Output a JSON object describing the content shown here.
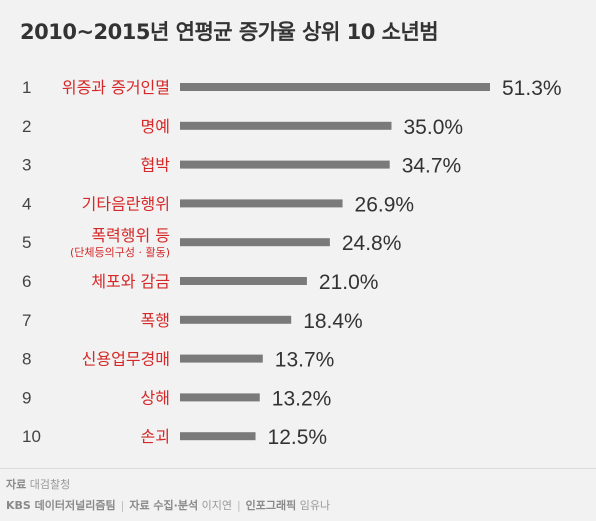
{
  "title": "2010~2015년 연평균 증가율 상위 10 소년범",
  "chart_data": {
    "type": "bar",
    "orientation": "horizontal",
    "title": "2010~2015년 연평균 증가율 상위 10 소년범",
    "ranks": [
      "1",
      "2",
      "3",
      "4",
      "5",
      "6",
      "7",
      "8",
      "9",
      "10"
    ],
    "categories": [
      "위증과 증거인멸",
      "명예",
      "협박",
      "기타음란행위",
      "폭력행위 등",
      "체포와 감금",
      "폭행",
      "신용업무경매",
      "상해",
      "손괴"
    ],
    "sublabels": {
      "4": "(단체등의구성 · 활동)"
    },
    "values": [
      51.3,
      35.0,
      34.7,
      26.9,
      24.8,
      21.0,
      18.4,
      13.7,
      13.2,
      12.5
    ],
    "value_labels": [
      "51.3%",
      "35.0%",
      "34.7%",
      "26.9%",
      "24.8%",
      "21.0%",
      "18.4%",
      "13.7%",
      "13.2%",
      "12.5%"
    ],
    "unit": "%",
    "xlim": [
      0,
      51.3
    ],
    "bar_color": "#7a7a7a",
    "label_color": "#d62828",
    "grid": false,
    "legend": "none"
  },
  "footer": {
    "source_label": "자료",
    "source_value": "대검찰청",
    "team": "KBS 데이터저널리즘팀",
    "collect_label": "자료 수집·분석",
    "collect_value": "이지연",
    "graphic_label": "인포그래픽",
    "graphic_value": "임유나"
  }
}
